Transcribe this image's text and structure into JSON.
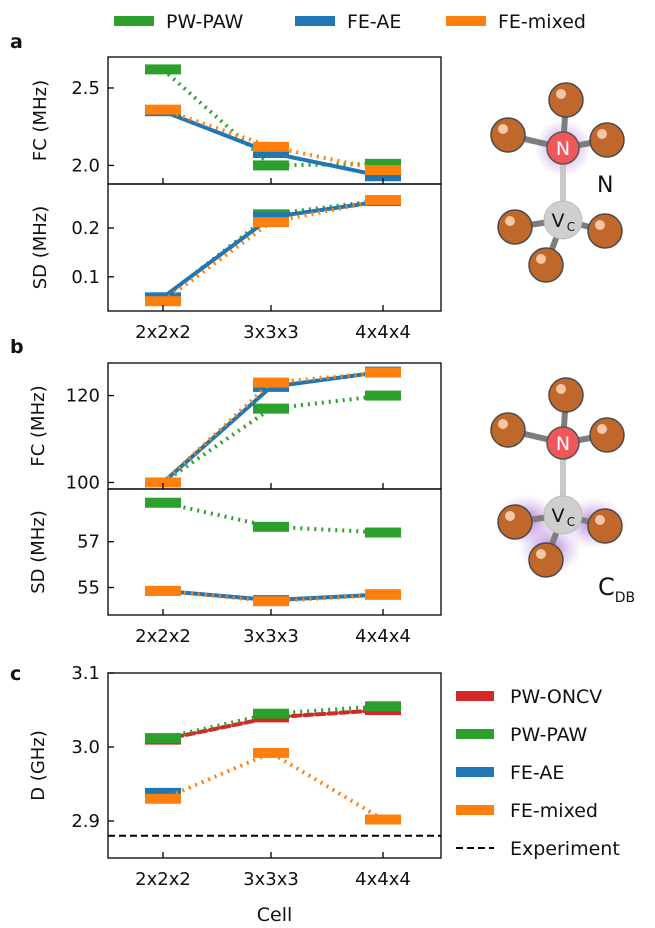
{
  "figure": {
    "top_legend": [
      {
        "label": "PW-PAW",
        "color": "#2ca02c"
      },
      {
        "label": "FE-AE",
        "color": "#1f77b4"
      },
      {
        "label": "FE-mixed",
        "color": "#ff7f0e"
      }
    ],
    "bottom_legend": [
      {
        "label": "PW-ONCV",
        "color": "#d62728",
        "style": "solid"
      },
      {
        "label": "PW-PAW",
        "color": "#2ca02c",
        "style": "solid"
      },
      {
        "label": "FE-AE",
        "color": "#1f77b4",
        "style": "solid"
      },
      {
        "label": "FE-mixed",
        "color": "#ff7f0e",
        "style": "solid"
      },
      {
        "label": "Experiment",
        "color": "#000000",
        "style": "dashed"
      }
    ],
    "panel_letters": [
      "a",
      "b",
      "c"
    ],
    "molecule_labels": {
      "n": "N",
      "vc_main": "V",
      "vc_sub": "C",
      "n_side": "N",
      "cdb_main": "C",
      "cdb_sub": "DB"
    }
  },
  "chart_data": [
    {
      "id": "a_fc",
      "type": "line",
      "ylabel": "FC (MHz)",
      "ylim": [
        1.88,
        2.7
      ],
      "yticks": [
        2.0,
        2.5
      ],
      "yticklabels": [
        "2.0",
        "2.5"
      ],
      "categories": [
        "2x2x2",
        "3x3x3",
        "4x4x4"
      ],
      "show_xticklabels": false,
      "series": [
        {
          "name": "PW-PAW",
          "color": "#2ca02c",
          "style": "dotted",
          "values": [
            2.62,
            2.0,
            2.01
          ]
        },
        {
          "name": "FE-AE",
          "color": "#1f77b4",
          "style": "solid",
          "values": [
            2.35,
            2.08,
            1.93
          ]
        },
        {
          "name": "FE-mixed",
          "color": "#ff7f0e",
          "style": "dotted",
          "values": [
            2.36,
            2.12,
            1.97
          ]
        }
      ]
    },
    {
      "id": "a_sd",
      "type": "line",
      "ylabel": "SD (MHz)",
      "ylim": [
        0.03,
        0.29
      ],
      "yticks": [
        0.1,
        0.2
      ],
      "yticklabels": [
        "0.1",
        "0.2"
      ],
      "categories": [
        "2x2x2",
        "3x3x3",
        "4x4x4"
      ],
      "show_xticklabels": true,
      "series": [
        {
          "name": "PW-PAW",
          "color": "#2ca02c",
          "style": "dotted",
          "values": [
            0.056,
            0.228,
            0.257
          ]
        },
        {
          "name": "FE-AE",
          "color": "#1f77b4",
          "style": "solid",
          "values": [
            0.058,
            0.222,
            0.255
          ]
        },
        {
          "name": "FE-mixed",
          "color": "#ff7f0e",
          "style": "dotted",
          "values": [
            0.05,
            0.212,
            0.257
          ]
        }
      ]
    },
    {
      "id": "b_fc",
      "type": "line",
      "ylabel": "FC (MHz)",
      "ylim": [
        98.5,
        127.5
      ],
      "yticks": [
        100,
        120
      ],
      "yticklabels": [
        "100",
        "120"
      ],
      "categories": [
        "2x2x2",
        "3x3x3",
        "4x4x4"
      ],
      "show_xticklabels": false,
      "series": [
        {
          "name": "PW-PAW",
          "color": "#2ca02c",
          "style": "dotted",
          "values": [
            100.0,
            117.0,
            120.0
          ]
        },
        {
          "name": "FE-AE",
          "color": "#1f77b4",
          "style": "solid",
          "values": [
            100.0,
            122.0,
            125.5
          ]
        },
        {
          "name": "FE-mixed",
          "color": "#ff7f0e",
          "style": "dotted",
          "values": [
            100.0,
            123.0,
            125.3
          ]
        }
      ]
    },
    {
      "id": "b_sd",
      "type": "line",
      "ylabel": "SD (MHz)",
      "ylim": [
        53.8,
        59.3
      ],
      "yticks": [
        55,
        57
      ],
      "yticklabels": [
        "55",
        "57"
      ],
      "categories": [
        "2x2x2",
        "3x3x3",
        "4x4x4"
      ],
      "show_xticklabels": true,
      "series": [
        {
          "name": "PW-PAW",
          "color": "#2ca02c",
          "style": "dotted",
          "values": [
            58.7,
            57.65,
            57.4
          ]
        },
        {
          "name": "FE-AE",
          "color": "#1f77b4",
          "style": "solid",
          "values": [
            54.85,
            54.45,
            54.7
          ]
        },
        {
          "name": "FE-mixed",
          "color": "#ff7f0e",
          "style": "dotted",
          "values": [
            54.85,
            54.4,
            54.68
          ]
        }
      ]
    },
    {
      "id": "c_d",
      "type": "line",
      "ylabel": "D (GHz)",
      "xlabel": "Cell",
      "ylim": [
        2.85,
        3.1
      ],
      "yticks": [
        2.9,
        3.0,
        3.1
      ],
      "yticklabels": [
        "2.9",
        "3.0",
        "3.1"
      ],
      "categories": [
        "2x2x2",
        "3x3x3",
        "4x4x4"
      ],
      "show_xticklabels": true,
      "hline": {
        "name": "Experiment",
        "value": 2.88,
        "color": "#000000"
      },
      "series": [
        {
          "name": "PW-ONCV",
          "color": "#d62728",
          "style": "dashed",
          "values": [
            3.01,
            3.04,
            3.05
          ]
        },
        {
          "name": "PW-PAW",
          "color": "#2ca02c",
          "style": "dotted",
          "values": [
            3.012,
            3.045,
            3.055
          ]
        },
        {
          "name": "FE-AE",
          "color": "#1f77b4",
          "style": "solid",
          "values": [
            2.938,
            null,
            null
          ]
        },
        {
          "name": "FE-mixed",
          "color": "#ff7f0e",
          "style": "dotted",
          "values": [
            2.93,
            2.992,
            2.902
          ]
        }
      ]
    }
  ]
}
